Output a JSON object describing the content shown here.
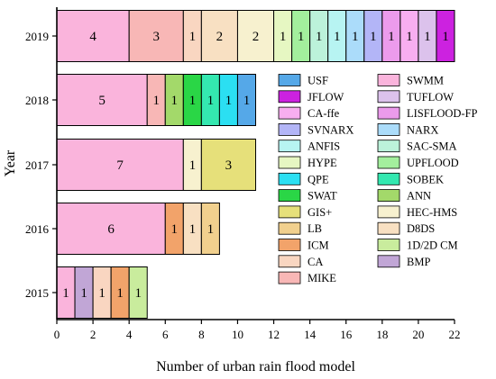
{
  "chart_data": {
    "type": "bar",
    "orientation": "horizontal",
    "stacked": true,
    "xlabel": "Number of urban rain flood model",
    "ylabel": "Year",
    "xlim": [
      0,
      22
    ],
    "x_ticks": [
      0,
      2,
      4,
      6,
      8,
      10,
      12,
      14,
      16,
      18,
      20,
      22
    ],
    "categories": [
      "2019",
      "2018",
      "2017",
      "2016",
      "2015"
    ],
    "bars": [
      {
        "category": "2019",
        "segments": [
          {
            "model": "SWMM",
            "value": 4
          },
          {
            "model": "MIKE",
            "value": 3
          },
          {
            "model": "CA",
            "value": 1
          },
          {
            "model": "D8DS",
            "value": 2
          },
          {
            "model": "HEC-HMS",
            "value": 2
          },
          {
            "model": "HYPE",
            "value": 1
          },
          {
            "model": "UPFLOOD",
            "value": 1
          },
          {
            "model": "SAC-SMA",
            "value": 1
          },
          {
            "model": "ANFIS",
            "value": 1
          },
          {
            "model": "NARX",
            "value": 1
          },
          {
            "model": "SVNARX",
            "value": 1
          },
          {
            "model": "LISFLOOD-FP",
            "value": 1
          },
          {
            "model": "CA-ffe",
            "value": 1
          },
          {
            "model": "TUFLOW",
            "value": 1
          },
          {
            "model": "JFLOW",
            "value": 1
          }
        ]
      },
      {
        "category": "2018",
        "segments": [
          {
            "model": "SWMM",
            "value": 5
          },
          {
            "model": "MIKE",
            "value": 1
          },
          {
            "model": "ANN",
            "value": 1
          },
          {
            "model": "SWAT",
            "value": 1
          },
          {
            "model": "SOBEK",
            "value": 1
          },
          {
            "model": "QPE",
            "value": 1
          },
          {
            "model": "USF",
            "value": 1
          }
        ]
      },
      {
        "category": "2017",
        "segments": [
          {
            "model": "SWMM",
            "value": 7
          },
          {
            "model": "HEC-HMS",
            "value": 1
          },
          {
            "model": "GIS+",
            "value": 3
          }
        ]
      },
      {
        "category": "2016",
        "segments": [
          {
            "model": "SWMM",
            "value": 6
          },
          {
            "model": "ICM",
            "value": 1
          },
          {
            "model": "D8DS",
            "value": 1
          },
          {
            "model": "LB",
            "value": 1
          }
        ]
      },
      {
        "category": "2015",
        "segments": [
          {
            "model": "SWMM",
            "value": 1
          },
          {
            "model": "BMP",
            "value": 1
          },
          {
            "model": "CA",
            "value": 1
          },
          {
            "model": "ICM",
            "value": 1
          },
          {
            "model": "1D/2D CM",
            "value": 1
          }
        ]
      }
    ],
    "legend": {
      "placement": "center-right",
      "columns": [
        [
          "USF",
          "JFLOW",
          "CA-ffe",
          "SVNARX",
          "ANFIS",
          "HYPE",
          "QPE",
          "SWAT",
          "GIS+",
          "LB",
          "ICM",
          "CA",
          "MIKE"
        ],
        [
          "SWMM",
          "TUFLOW",
          "LISFLOOD-FP",
          "NARX",
          "SAC-SMA",
          "UPFLOOD",
          "SOBEK",
          "ANN",
          "HEC-HMS",
          "D8DS",
          "1D/2D CM",
          "BMP"
        ]
      ]
    },
    "colors": {
      "USF": "#55a8e8",
      "JFLOW": "#cc22e0",
      "CA-ffe": "#f8aef0",
      "SVNARX": "#b3b5f7",
      "ANFIS": "#b7f4f2",
      "HYPE": "#e6f7c2",
      "QPE": "#2bdff2",
      "SWAT": "#2ad646",
      "GIS+": "#e6e07a",
      "LB": "#f1d08e",
      "ICM": "#f2a36a",
      "CA": "#f9d6c1",
      "MIKE": "#f8b7b6",
      "SWMM": "#fab4dc",
      "TUFLOW": "#dcc2ec",
      "LISFLOOD-FP": "#ec9bec",
      "NARX": "#abdcfa",
      "SAC-SMA": "#bcf2da",
      "UPFLOOD": "#a3ef9d",
      "SOBEK": "#34e8b0",
      "ANN": "#a3d96a",
      "HEC-HMS": "#f7f1cf",
      "D8DS": "#f8e0c2",
      "1D/2D CM": "#c9ec9d",
      "BMP": "#c1a6d6"
    },
    "grid": false
  }
}
